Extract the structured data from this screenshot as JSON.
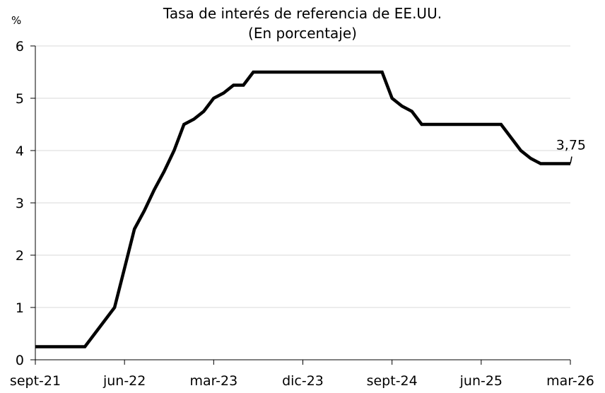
{
  "chart_data": {
    "type": "line",
    "title": "Tasa de interés de referencia de EE.UU.",
    "subtitle": "(En porcentaje)",
    "ylabel": "%",
    "xlabel": "",
    "ylim": [
      0,
      6
    ],
    "yticks": [
      "0",
      "1",
      "2",
      "3",
      "4",
      "5",
      "6"
    ],
    "xticks": [
      "sept-21",
      "jun-22",
      "mar-23",
      "dic-23",
      "sept-24",
      "jun-25",
      "mar-26"
    ],
    "grid": "horizontal",
    "line_color": "#000000",
    "grid_color": "#d9d9d9",
    "end_label": "3,75",
    "series": [
      {
        "x": [
          "sep-21",
          "oct-21",
          "nov-21",
          "dic-21",
          "ene-22",
          "feb-22",
          "mar-22",
          "abr-22",
          "may-22",
          "jun-22",
          "jul-22",
          "ago-22",
          "sep-22",
          "oct-22",
          "nov-22",
          "dic-22",
          "ene-23",
          "feb-23",
          "mar-23",
          "abr-23",
          "may-23",
          "jun-23",
          "jul-23",
          "ago-23",
          "sep-23",
          "oct-23",
          "nov-23",
          "dic-23",
          "ene-24",
          "feb-24",
          "mar-24",
          "abr-24",
          "may-24",
          "jun-24",
          "jul-24",
          "ago-24",
          "sep-24",
          "oct-24",
          "nov-24",
          "dic-24",
          "ene-25",
          "feb-25",
          "mar-25",
          "abr-25",
          "may-25",
          "jun-25",
          "jul-25",
          "ago-25",
          "sep-25",
          "oct-25",
          "nov-25",
          "dic-25",
          "ene-26",
          "feb-26",
          "mar-26"
        ],
        "values": [
          0.25,
          0.25,
          0.25,
          0.25,
          0.25,
          0.25,
          0.5,
          0.75,
          1,
          1.75,
          2.5,
          2.85,
          3.25,
          3.6,
          4,
          4.5,
          4.6,
          4.75,
          5,
          5.1,
          5.25,
          5.25,
          5.5,
          5.5,
          5.5,
          5.5,
          5.5,
          5.5,
          5.5,
          5.5,
          5.5,
          5.5,
          5.5,
          5.5,
          5.5,
          5.5,
          5,
          4.85,
          4.75,
          4.5,
          4.5,
          4.5,
          4.5,
          4.5,
          4.5,
          4.5,
          4.5,
          4.5,
          4.25,
          4,
          3.85,
          3.75,
          3.75,
          3.75,
          3.75
        ]
      }
    ]
  }
}
